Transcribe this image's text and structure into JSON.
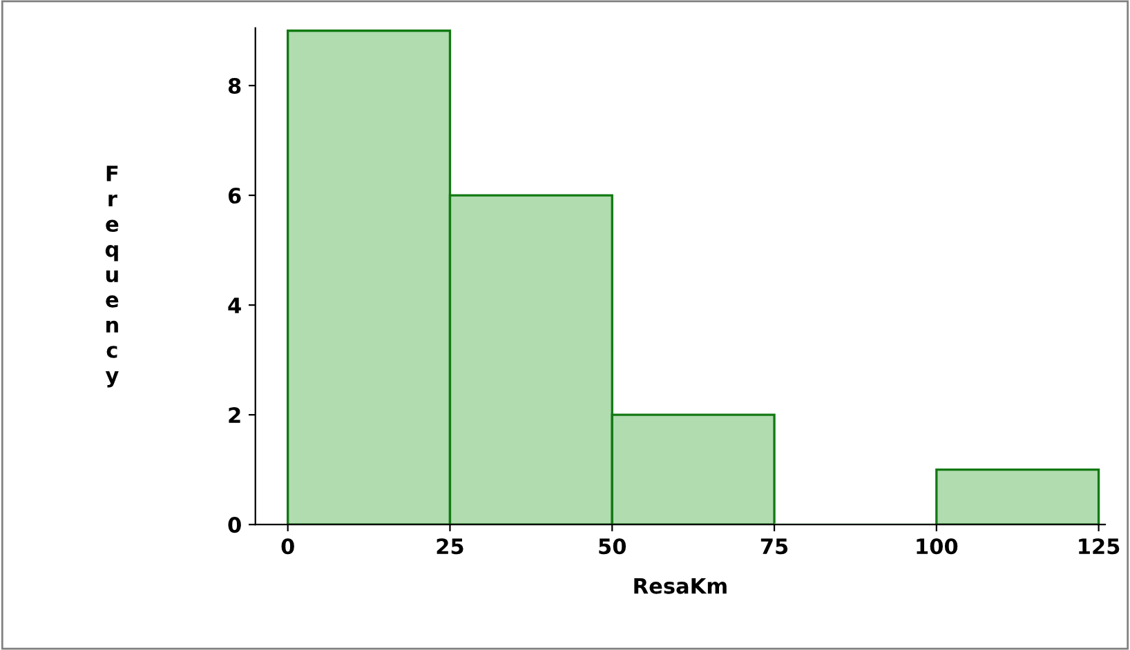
{
  "chart_data": {
    "type": "histogram",
    "xlabel": "ResaKm",
    "ylabel": "Frequency",
    "bins": [
      0,
      25,
      50,
      75,
      100,
      125
    ],
    "values": [
      9,
      6,
      2,
      0,
      1
    ],
    "color": "#b0dcb0",
    "xlim": [
      -5,
      126
    ],
    "ylim": [
      0,
      9.05
    ],
    "xticks": [
      0,
      25,
      50,
      75,
      100,
      125
    ],
    "yticks": [
      0,
      2,
      4,
      6,
      8
    ],
    "grid": false
  }
}
